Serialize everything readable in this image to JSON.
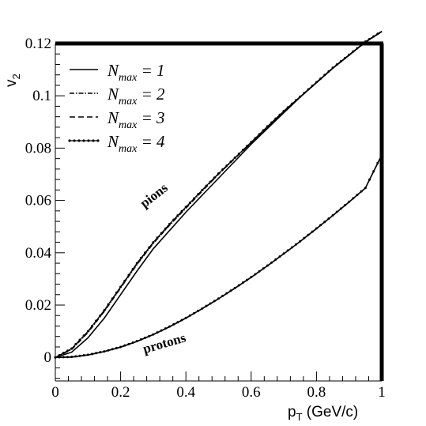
{
  "chart_data": {
    "type": "line",
    "title": "",
    "xlabel": "p_T (GeV/c)",
    "xlabel_main": "p",
    "xlabel_sub": "T",
    "xlabel_unit": " (GeV/c)",
    "ylabel": "v_2",
    "ylabel_main": "v",
    "ylabel_sub": "2",
    "xlim": [
      0,
      1
    ],
    "ylim": [
      -0.009,
      0.12
    ],
    "x_ticks": [
      0,
      0.2,
      0.4,
      0.6,
      0.8,
      1
    ],
    "x_tick_labels": [
      "0",
      "0.2",
      "0.4",
      "0.6",
      "0.8",
      "1"
    ],
    "y_ticks": [
      0,
      0.02,
      0.04,
      0.06,
      0.08,
      0.1,
      0.12
    ],
    "y_tick_labels": [
      "0",
      "0.02",
      "0.04",
      "0.06",
      "0.08",
      "0.1",
      "0.12"
    ],
    "grid": false,
    "legend_position": "top-left",
    "legend": [
      {
        "prefix": "N",
        "sub": "max",
        "suffix": " = 1",
        "style": "solid"
      },
      {
        "prefix": "N",
        "sub": "max",
        "suffix": " = 2",
        "style": "dash-dot"
      },
      {
        "prefix": "N",
        "sub": "max",
        "suffix": " = 3",
        "style": "dashed"
      },
      {
        "prefix": "N",
        "sub": "max",
        "suffix": " = 4",
        "style": "dotted-markers"
      }
    ],
    "annotations": [
      {
        "text": "pions",
        "x": 0.37,
        "y": 0.057,
        "rotation": -38
      },
      {
        "text": "protons",
        "x": 0.37,
        "y": 0.0015,
        "rotation": -16
      }
    ],
    "series": [
      {
        "group": "pions",
        "style": "solid",
        "x": [
          0,
          0.05,
          0.1,
          0.15,
          0.2,
          0.25,
          0.3,
          0.35,
          0.4,
          0.45,
          0.5,
          0.55,
          0.6,
          0.65,
          0.7,
          0.75,
          0.8,
          0.85,
          0.9,
          0.95,
          1.0
        ],
        "y": [
          0,
          0.002,
          0.0075,
          0.015,
          0.024,
          0.033,
          0.0415,
          0.0485,
          0.0555,
          0.062,
          0.0685,
          0.075,
          0.0815,
          0.0875,
          0.0935,
          0.0995,
          0.105,
          0.1105,
          0.1155,
          0.1205,
          0.1245
        ]
      },
      {
        "group": "pions",
        "style": "dash-dot",
        "x": [
          0,
          0.05,
          0.1,
          0.15,
          0.2,
          0.25,
          0.3,
          0.35,
          0.4,
          0.45,
          0.5,
          0.55,
          0.6,
          0.65,
          0.7,
          0.75,
          0.8,
          0.85,
          0.9,
          0.95,
          1.0
        ],
        "y": [
          0,
          0.003,
          0.0095,
          0.0175,
          0.0265,
          0.0355,
          0.0435,
          0.0505,
          0.057,
          0.0635,
          0.07,
          0.076,
          0.082,
          0.088,
          0.094,
          0.0995,
          0.105,
          0.1105,
          0.1155,
          0.1205,
          0.1245
        ]
      },
      {
        "group": "pions",
        "style": "dashed",
        "x": [
          0,
          0.05,
          0.1,
          0.15,
          0.2,
          0.25,
          0.3,
          0.35,
          0.4,
          0.45,
          0.5,
          0.55,
          0.6,
          0.65,
          0.7,
          0.75,
          0.8,
          0.85,
          0.9,
          0.95,
          1.0
        ],
        "y": [
          0,
          0.0032,
          0.0098,
          0.0178,
          0.0268,
          0.0358,
          0.0438,
          0.0508,
          0.0573,
          0.0638,
          0.0702,
          0.0762,
          0.0822,
          0.0882,
          0.0941,
          0.0996,
          0.1051,
          0.1106,
          0.1156,
          0.1206,
          0.1246
        ]
      },
      {
        "group": "pions",
        "style": "dotted-markers",
        "x": [
          0,
          0.05,
          0.1,
          0.15,
          0.2,
          0.25,
          0.3,
          0.35,
          0.4,
          0.45,
          0.5,
          0.55,
          0.6,
          0.65,
          0.7,
          0.75,
          0.8,
          0.85,
          0.9,
          0.95,
          1.0
        ],
        "y": [
          0,
          0.0034,
          0.01,
          0.018,
          0.027,
          0.036,
          0.044,
          0.051,
          0.0575,
          0.064,
          0.0703,
          0.0763,
          0.0823,
          0.0883,
          0.0942,
          0.0997,
          0.1052,
          0.1107,
          0.1157,
          0.1207,
          0.1247
        ]
      },
      {
        "group": "protons",
        "style": "solid",
        "x": [
          0,
          0.05,
          0.1,
          0.15,
          0.2,
          0.25,
          0.3,
          0.35,
          0.4,
          0.45,
          0.5,
          0.55,
          0.6,
          0.65,
          0.7,
          0.75,
          0.8,
          0.85,
          0.9,
          0.95,
          1.0
        ],
        "y": [
          0,
          0.0001,
          0.0009,
          0.0022,
          0.0039,
          0.0061,
          0.0087,
          0.0117,
          0.015,
          0.0186,
          0.0224,
          0.0264,
          0.0306,
          0.035,
          0.0396,
          0.0443,
          0.0492,
          0.0542,
          0.0594,
          0.0647,
          0.0773
        ]
      },
      {
        "group": "protons",
        "style": "dotted-markers",
        "x": [
          0,
          0.05,
          0.1,
          0.15,
          0.2,
          0.25,
          0.3,
          0.35,
          0.4,
          0.45,
          0.5,
          0.55,
          0.6,
          0.65,
          0.7,
          0.75,
          0.8,
          0.85,
          0.9,
          0.95,
          1.0
        ],
        "y": [
          0,
          0.0002,
          0.001,
          0.0023,
          0.004,
          0.0062,
          0.0088,
          0.0118,
          0.0151,
          0.0187,
          0.0225,
          0.0265,
          0.0307,
          0.0351,
          0.0397,
          0.0444,
          0.0493,
          0.0543,
          0.0595,
          0.0648,
          0.0775
        ]
      }
    ]
  }
}
